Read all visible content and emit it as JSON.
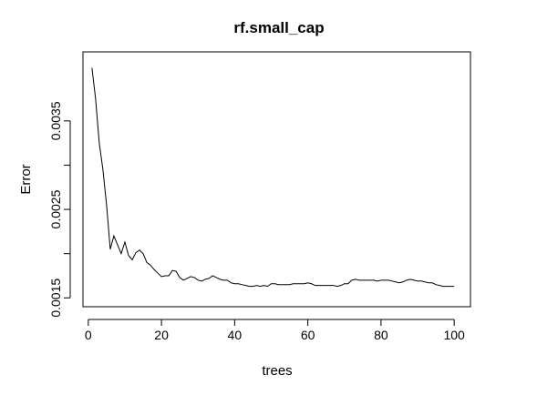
{
  "chart_data": {
    "type": "line",
    "title": "rf.small_cap",
    "xlabel": "trees",
    "ylabel": "Error",
    "xlim": [
      0,
      100
    ],
    "ylim": [
      0.0015,
      0.0042
    ],
    "x_ticks": [
      0,
      20,
      40,
      60,
      80,
      100
    ],
    "x_tick_labels": [
      "0",
      "20",
      "40",
      "60",
      "80",
      "100"
    ],
    "y_ticks": [
      0.0015,
      0.002,
      0.0025,
      0.003,
      0.0035
    ],
    "y_tick_labels": [
      "0.0015",
      "",
      "0.0025",
      "",
      "0.0035"
    ],
    "grid": false,
    "legend": "none",
    "line_color": "#000000",
    "series": [
      {
        "x": [
          1,
          2,
          3,
          4,
          5,
          6,
          7,
          8,
          9,
          10,
          11,
          12,
          13,
          14,
          15,
          16,
          17,
          18,
          19,
          20,
          21,
          22,
          23,
          24,
          25,
          26,
          27,
          28,
          29,
          30,
          31,
          32,
          33,
          34,
          35,
          36,
          37,
          38,
          39,
          40,
          41,
          42,
          43,
          44,
          45,
          46,
          47,
          48,
          49,
          50,
          51,
          52,
          53,
          54,
          55,
          56,
          57,
          58,
          59,
          60,
          61,
          62,
          63,
          64,
          65,
          66,
          67,
          68,
          69,
          70,
          71,
          72,
          73,
          74,
          75,
          76,
          77,
          78,
          79,
          80,
          81,
          82,
          83,
          84,
          85,
          86,
          87,
          88,
          89,
          90,
          91,
          92,
          93,
          94,
          95,
          96,
          97,
          98,
          99,
          100
        ],
        "values": [
          0.0041,
          0.00375,
          0.00325,
          0.00295,
          0.00255,
          0.00205,
          0.0022,
          0.0021,
          0.002,
          0.00213,
          0.00198,
          0.00193,
          0.00201,
          0.00204,
          0.002,
          0.0019,
          0.00187,
          0.00182,
          0.00178,
          0.00174,
          0.00175,
          0.00175,
          0.00181,
          0.0018,
          0.00173,
          0.0017,
          0.00172,
          0.00174,
          0.00173,
          0.0017,
          0.00169,
          0.00171,
          0.00172,
          0.00175,
          0.00173,
          0.00171,
          0.0017,
          0.0017,
          0.00167,
          0.00166,
          0.00166,
          0.00165,
          0.00164,
          0.00163,
          0.00163,
          0.00164,
          0.00163,
          0.00164,
          0.00163,
          0.00166,
          0.00166,
          0.00165,
          0.00165,
          0.00165,
          0.00165,
          0.00166,
          0.00166,
          0.00166,
          0.00166,
          0.00167,
          0.00166,
          0.00164,
          0.00164,
          0.00164,
          0.00164,
          0.00164,
          0.00164,
          0.00163,
          0.00164,
          0.00166,
          0.00166,
          0.0017,
          0.00171,
          0.0017,
          0.0017,
          0.0017,
          0.0017,
          0.0017,
          0.00169,
          0.0017,
          0.0017,
          0.0017,
          0.00169,
          0.00168,
          0.00167,
          0.00168,
          0.0017,
          0.00171,
          0.0017,
          0.00169,
          0.00169,
          0.00168,
          0.00167,
          0.00167,
          0.00165,
          0.00164,
          0.00163,
          0.00163,
          0.00163,
          0.00163
        ]
      }
    ]
  }
}
